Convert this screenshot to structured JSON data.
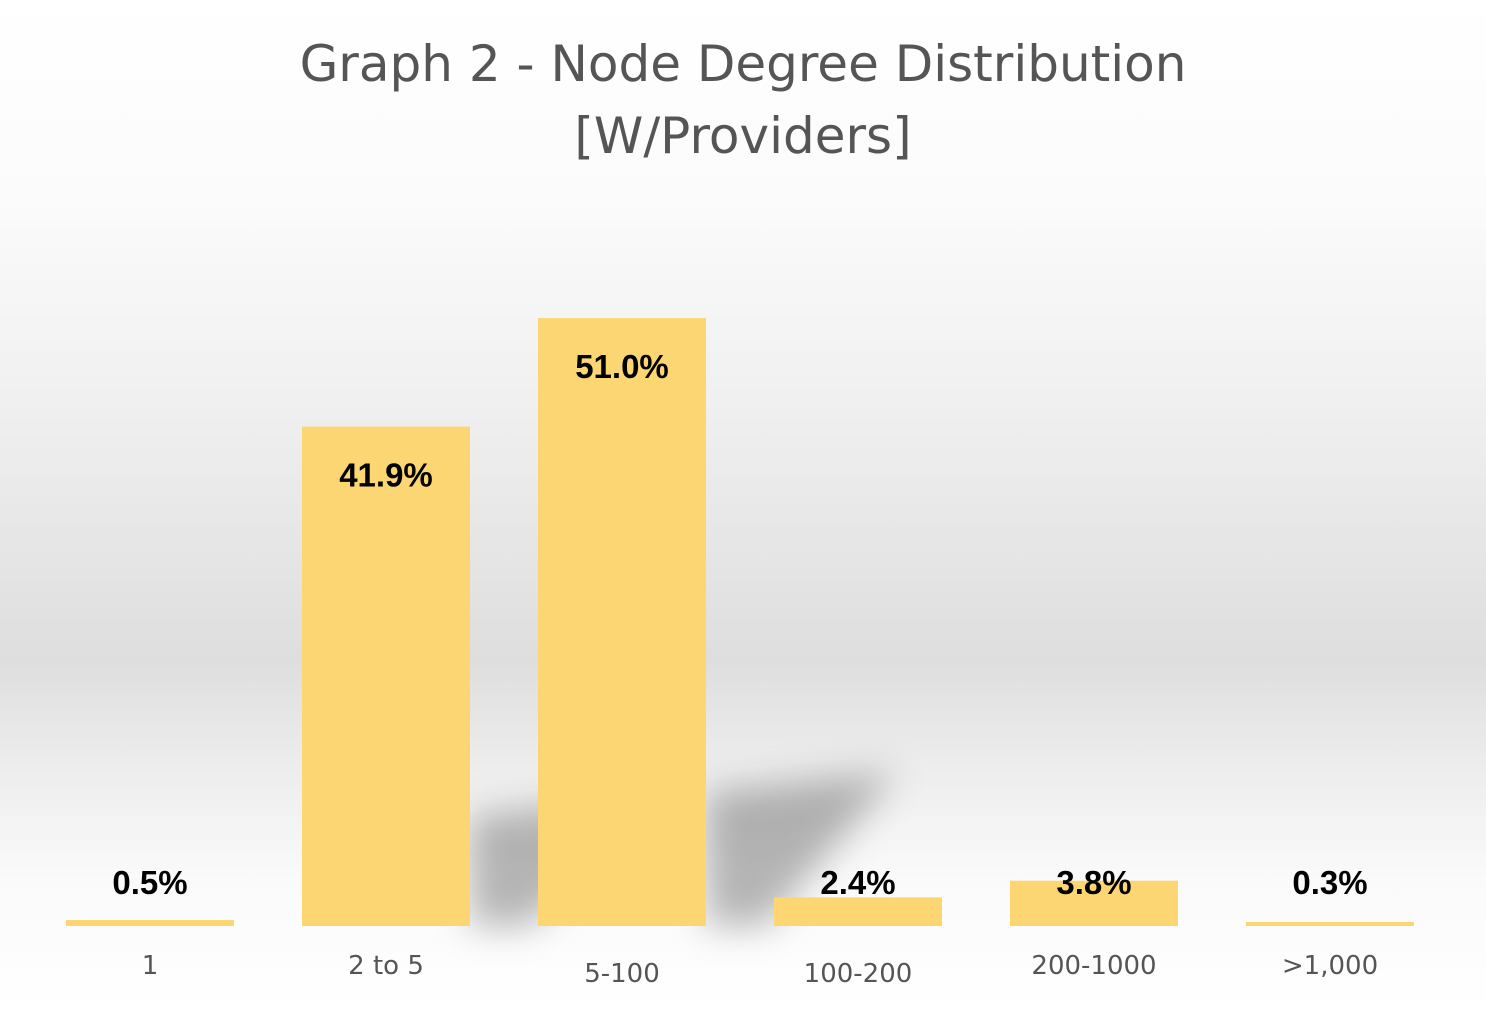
{
  "chart_data": {
    "type": "bar",
    "title": "Graph 2 - Node Degree Distribution",
    "subtitle": "[W/Providers]",
    "categories": [
      "1",
      "2 to 5",
      "5-100",
      "100-200",
      "200-1000",
      ">1,000"
    ],
    "values": [
      0.5,
      41.9,
      51.0,
      2.4,
      3.8,
      0.3
    ],
    "data_labels": [
      "0.5%",
      "41.9%",
      "51.0%",
      "2.4%",
      "3.8%",
      "0.3%"
    ],
    "xlabel": "",
    "ylabel": "",
    "ylim": [
      0,
      100
    ],
    "grid": false,
    "legend": "none",
    "bar_color": "#FCD672"
  }
}
